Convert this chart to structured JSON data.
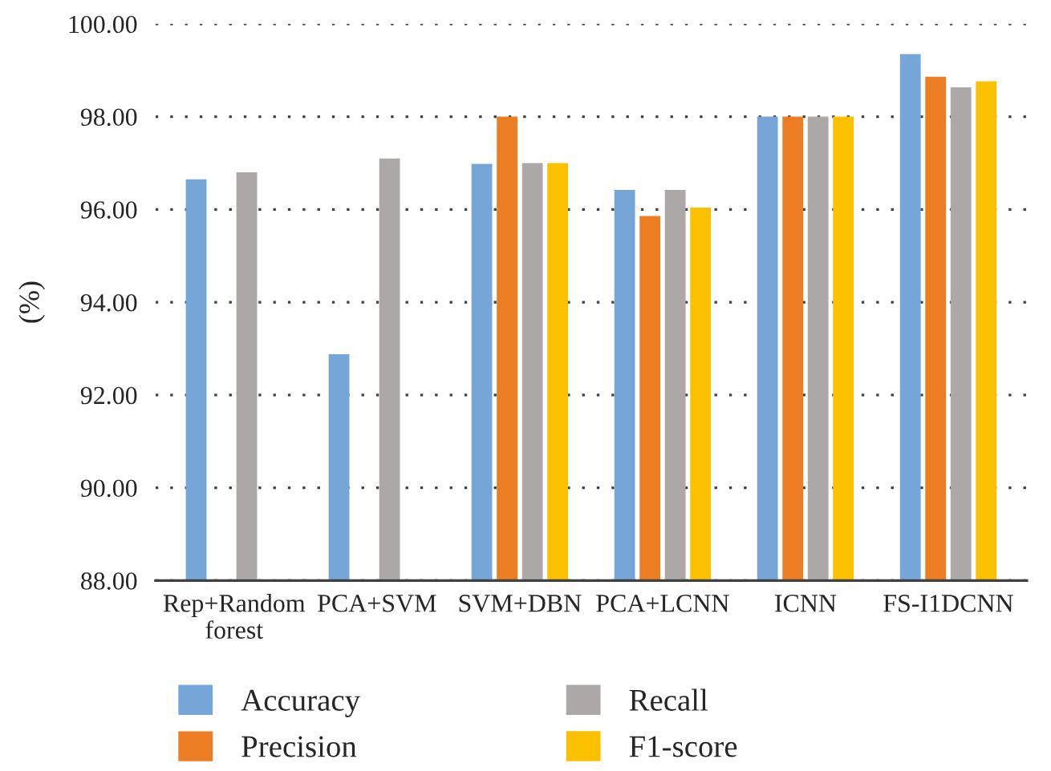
{
  "chart_data": {
    "type": "bar",
    "ylabel": "(%)",
    "categories": [
      "Rep+Random forest",
      "PCA+SVM",
      "SVM+DBN",
      "PCA+LCNN",
      "ICNN",
      "FS-I1DCNN"
    ],
    "series": [
      {
        "name": "Accuracy",
        "color": "#75a6d7",
        "values": [
          96.65,
          92.88,
          96.98,
          96.42,
          98.0,
          99.35
        ]
      },
      {
        "name": "Precision",
        "color": "#ed7d22",
        "values": [
          null,
          null,
          98.0,
          95.86,
          98.0,
          98.86
        ]
      },
      {
        "name": "Recall",
        "color": "#aca8a7",
        "values": [
          96.8,
          97.1,
          97.0,
          96.42,
          98.0,
          98.63
        ]
      },
      {
        "name": "F1-score",
        "color": "#fbc000",
        "values": [
          null,
          null,
          97.0,
          96.04,
          98.0,
          98.76
        ]
      }
    ],
    "ylim": [
      88,
      100
    ],
    "yticks": [
      {
        "value": 88,
        "label": "88.00"
      },
      {
        "value": 90,
        "label": "90.00"
      },
      {
        "value": 92,
        "label": "92.00"
      },
      {
        "value": 94,
        "label": "94.00"
      },
      {
        "value": 96,
        "label": "96.00"
      },
      {
        "value": 98,
        "label": "98.00"
      },
      {
        "value": 100,
        "label": "100.00"
      }
    ],
    "grid": "y",
    "legend": "bottom"
  }
}
